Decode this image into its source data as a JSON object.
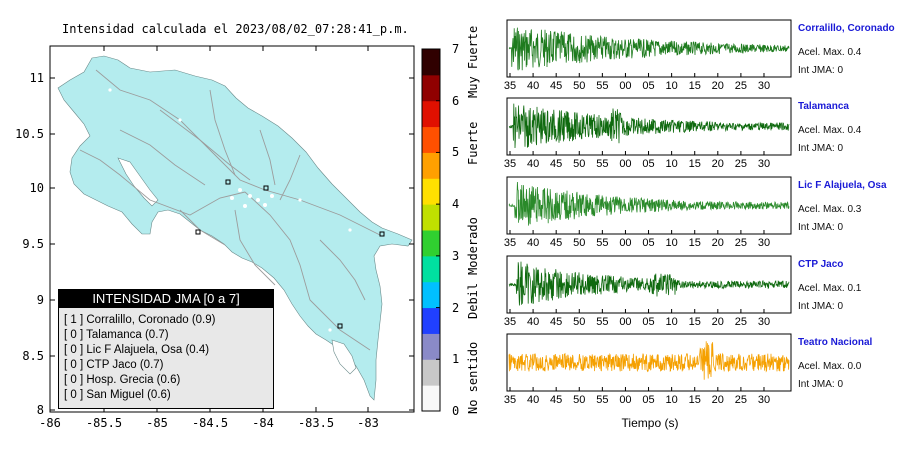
{
  "map": {
    "title": "Intensidad calculada el 2023/08/02_07:28:41_p.m.",
    "yticks": [
      "11",
      "10.5",
      "10",
      "9.5",
      "9",
      "8.5",
      "8"
    ],
    "xticks": [
      "-86",
      "-85.5",
      "-85",
      "-84.5",
      "-84",
      "-83.5",
      "-83"
    ],
    "colors": {
      "land": "#b4ecee",
      "sea": "#ffffff",
      "roads": "#9c9c9c",
      "frame": "#000000"
    }
  },
  "colorbar": {
    "ticks": [
      "7",
      "6",
      "5",
      "4",
      "3",
      "2",
      "1",
      "0"
    ],
    "categories": [
      "Muy Fuerte",
      "Fuerte",
      "Moderado",
      "Debil",
      "No sentido"
    ],
    "colors": [
      "#f8f8f8",
      "#c8c8c8",
      "#8a8ac8",
      "#2040ff",
      "#00c0ff",
      "#00e0a0",
      "#30d030",
      "#c0e000",
      "#ffe000",
      "#ffa000",
      "#ff5000",
      "#e01000",
      "#900000",
      "#300000"
    ]
  },
  "legend": {
    "header": "INTENSIDAD JMA [0 a 7]",
    "rows": [
      "[ 1 ] Corralillo, Coronado (0.9)",
      "[ 0 ] Talamanca (0.7)",
      "[ 0 ] Lic F Alajuela, Osa (0.4)",
      "[ 0 ] CTP Jaco (0.7)",
      "[ 0 ] Hosp. Grecia (0.6)",
      "[ 0 ] San Miguel (0.6)"
    ]
  },
  "seismograms": {
    "xlabel": "Tiempo (s)",
    "stations": [
      {
        "name": "Corralillo, Coronado",
        "acc": "Acel. Max. 0.4",
        "int": "Int JMA: 0",
        "color": "#1e7b1e",
        "ticks": [
          "35",
          "40",
          "45",
          "50",
          "55",
          "00",
          "05",
          "10",
          "15",
          "20",
          "25",
          "30"
        ]
      },
      {
        "name": "Talamanca",
        "acc": "Acel. Max. 0.4",
        "int": "Int JMA: 0",
        "color": "#0f6a0f",
        "ticks": [
          "35",
          "40",
          "45",
          "50",
          "55",
          "00",
          "05",
          "10",
          "15",
          "20",
          "25",
          "30"
        ]
      },
      {
        "name": "Lic F Alajuela, Osa",
        "acc": "Acel. Max. 0.3",
        "int": "Int JMA: 0",
        "color": "#2a8a2a",
        "ticks": [
          "35",
          "40",
          "45",
          "50",
          "55",
          "00",
          "05",
          "10",
          "15",
          "20",
          "25",
          "30"
        ]
      },
      {
        "name": "CTP Jaco",
        "acc": "Acel. Max. 0.1",
        "int": "Int JMA: 0",
        "color": "#0f6a0f",
        "ticks": [
          "35",
          "40",
          "45",
          "50",
          "55",
          "00",
          "05",
          "10",
          "15",
          "20",
          "25",
          "30"
        ]
      },
      {
        "name": "Teatro Nacional",
        "acc": "Acel. Max. 0.0",
        "int": "Int JMA: 0",
        "color": "#f5a000",
        "ticks": [
          "35",
          "40",
          "45",
          "50",
          "55",
          "00",
          "05",
          "10",
          "15",
          "20",
          "25",
          "30"
        ]
      }
    ]
  },
  "chart_data": [
    {
      "type": "heatmap",
      "title": "Intensidad calculada el 2023/08/02_07:28:41_p.m.",
      "xlim": [
        -86,
        -82.5
      ],
      "ylim": [
        8,
        11.3
      ],
      "colorbar_range": [
        0,
        7
      ],
      "stations": [
        {
          "name": "Corralillo, Coronado",
          "intensity_class": 1,
          "value": 0.9
        },
        {
          "name": "Talamanca",
          "intensity_class": 0,
          "value": 0.7
        },
        {
          "name": "Lic F Alajuela, Osa",
          "intensity_class": 0,
          "value": 0.4
        },
        {
          "name": "CTP Jaco",
          "intensity_class": 0,
          "value": 0.7
        },
        {
          "name": "Hosp. Grecia",
          "intensity_class": 0,
          "value": 0.6
        },
        {
          "name": "San Miguel",
          "intensity_class": 0,
          "value": 0.6
        }
      ]
    },
    {
      "type": "line",
      "xlabel": "Tiempo (s)",
      "series": [
        {
          "name": "Corralillo, Coronado",
          "peak": 0.4
        },
        {
          "name": "Talamanca",
          "peak": 0.4
        },
        {
          "name": "Lic F Alajuela, Osa",
          "peak": 0.3
        },
        {
          "name": "CTP Jaco",
          "peak": 0.1
        },
        {
          "name": "Teatro Nacional",
          "peak": 0.0
        }
      ]
    }
  ]
}
